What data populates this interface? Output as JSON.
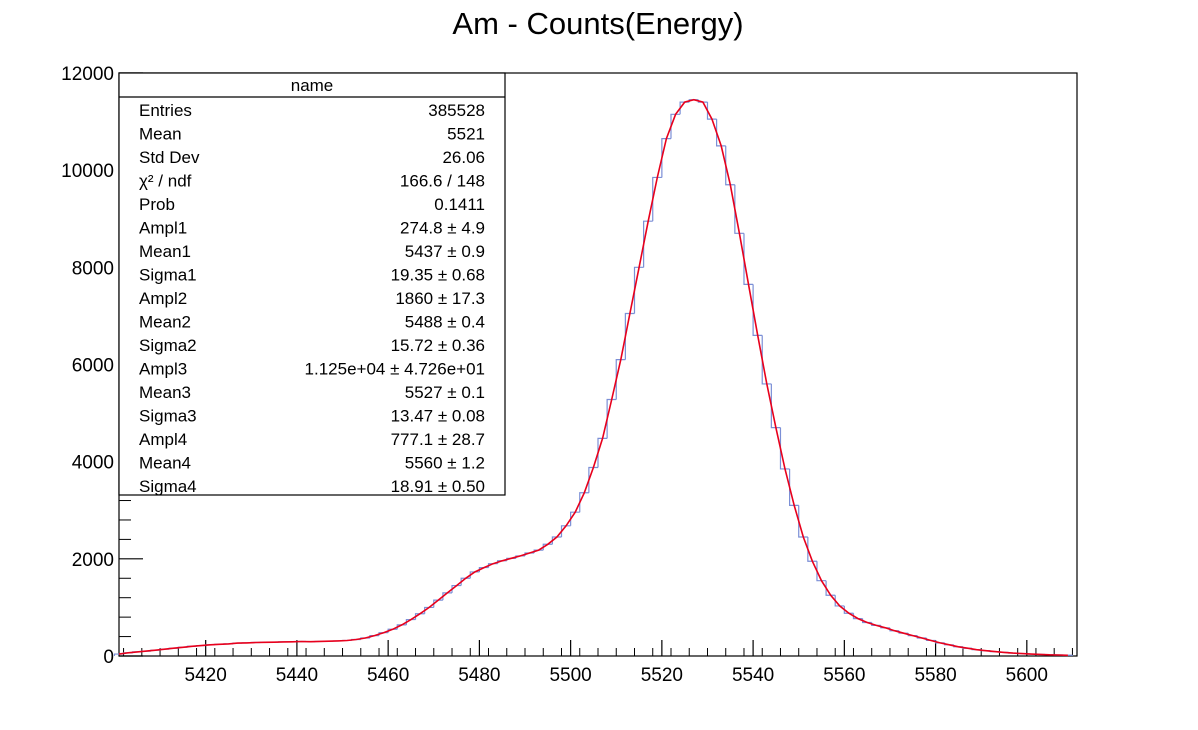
{
  "chart_data": {
    "type": "line",
    "title": "Am - Counts(Energy)",
    "xlabel": "",
    "ylabel": "",
    "xlim": [
      5401,
      5611
    ],
    "ylim": [
      0,
      12000
    ],
    "x_ticks": [
      5420,
      5440,
      5460,
      5480,
      5500,
      5520,
      5540,
      5560,
      5580,
      5600
    ],
    "y_ticks": [
      0,
      2000,
      4000,
      6000,
      8000,
      10000,
      12000
    ],
    "colors": {
      "histogram": "#7b8fd6",
      "fit": "#e8001c"
    },
    "bin_width": 2,
    "series": [
      {
        "kind": "histogram",
        "x": [
          5401,
          5403,
          5405,
          5407,
          5409,
          5411,
          5413,
          5415,
          5417,
          5419,
          5421,
          5423,
          5425,
          5427,
          5429,
          5431,
          5433,
          5435,
          5437,
          5439,
          5441,
          5443,
          5445,
          5447,
          5449,
          5451,
          5453,
          5455,
          5457,
          5459,
          5461,
          5463,
          5465,
          5467,
          5469,
          5471,
          5473,
          5475,
          5477,
          5479,
          5481,
          5483,
          5485,
          5487,
          5489,
          5491,
          5493,
          5495,
          5497,
          5499,
          5501,
          5503,
          5505,
          5507,
          5509,
          5511,
          5513,
          5515,
          5517,
          5519,
          5521,
          5523,
          5525,
          5527,
          5529,
          5531,
          5533,
          5535,
          5537,
          5539,
          5541,
          5543,
          5545,
          5547,
          5549,
          5551,
          5553,
          5555,
          5557,
          5559,
          5561,
          5563,
          5565,
          5567,
          5569,
          5571,
          5573,
          5575,
          5577,
          5579,
          5581,
          5583,
          5585,
          5587,
          5589,
          5591,
          5593,
          5595,
          5597,
          5599,
          5601,
          5603,
          5605,
          5607,
          5609
        ],
        "values": [
          40,
          65,
          85,
          100,
          120,
          140,
          160,
          180,
          200,
          215,
          230,
          240,
          250,
          265,
          270,
          278,
          282,
          285,
          290,
          292,
          298,
          295,
          300,
          305,
          310,
          320,
          340,
          370,
          420,
          480,
          550,
          640,
          750,
          870,
          1000,
          1150,
          1300,
          1450,
          1600,
          1730,
          1820,
          1900,
          1960,
          2010,
          2060,
          2120,
          2180,
          2300,
          2450,
          2680,
          2960,
          3360,
          3880,
          4480,
          5280,
          6100,
          7050,
          8000,
          8950,
          9850,
          10650,
          11150,
          11400,
          11450,
          11400,
          11050,
          10500,
          9700,
          8700,
          7650,
          6600,
          5600,
          4700,
          3850,
          3100,
          2450,
          1950,
          1550,
          1250,
          1030,
          880,
          770,
          690,
          630,
          580,
          520,
          470,
          420,
          370,
          320,
          270,
          230,
          190,
          160,
          130,
          110,
          90,
          75,
          60,
          50,
          40,
          32,
          25,
          20,
          15
        ]
      },
      {
        "kind": "fit",
        "x": [
          5401,
          5403,
          5405,
          5407,
          5409,
          5411,
          5413,
          5415,
          5417,
          5419,
          5421,
          5423,
          5425,
          5427,
          5429,
          5431,
          5433,
          5435,
          5437,
          5439,
          5441,
          5443,
          5445,
          5447,
          5449,
          5451,
          5453,
          5455,
          5457,
          5459,
          5461,
          5463,
          5465,
          5467,
          5469,
          5471,
          5473,
          5475,
          5477,
          5479,
          5481,
          5483,
          5485,
          5487,
          5489,
          5491,
          5493,
          5495,
          5497,
          5499,
          5501,
          5503,
          5505,
          5507,
          5509,
          5511,
          5513,
          5515,
          5517,
          5519,
          5521,
          5523,
          5525,
          5527,
          5529,
          5531,
          5533,
          5535,
          5537,
          5539,
          5541,
          5543,
          5545,
          5547,
          5549,
          5551,
          5553,
          5555,
          5557,
          5559,
          5561,
          5563,
          5565,
          5567,
          5569,
          5571,
          5573,
          5575,
          5577,
          5579,
          5581,
          5583,
          5585,
          5587,
          5589,
          5591,
          5593,
          5595,
          5597,
          5599,
          5601,
          5603,
          5605,
          5607,
          5609
        ],
        "values": [
          40,
          65,
          85,
          100,
          120,
          140,
          160,
          180,
          200,
          215,
          230,
          240,
          250,
          265,
          270,
          278,
          282,
          285,
          290,
          292,
          298,
          295,
          300,
          305,
          310,
          320,
          340,
          370,
          420,
          480,
          550,
          640,
          750,
          870,
          1000,
          1150,
          1300,
          1450,
          1600,
          1730,
          1820,
          1900,
          1960,
          2010,
          2060,
          2120,
          2180,
          2300,
          2450,
          2680,
          2960,
          3360,
          3880,
          4480,
          5280,
          6100,
          7050,
          8000,
          8950,
          9850,
          10650,
          11150,
          11400,
          11450,
          11400,
          11050,
          10500,
          9700,
          8700,
          7650,
          6600,
          5600,
          4700,
          3850,
          3100,
          2450,
          1950,
          1550,
          1250,
          1030,
          880,
          770,
          690,
          630,
          580,
          520,
          470,
          420,
          370,
          320,
          270,
          230,
          190,
          160,
          130,
          110,
          90,
          75,
          60,
          50,
          40,
          32,
          25,
          20,
          15
        ]
      }
    ]
  },
  "stats": {
    "name": "name",
    "rows": [
      {
        "label": "Entries",
        "value": "385528"
      },
      {
        "label": "Mean",
        "value": "5521"
      },
      {
        "label": "Std Dev",
        "value": "26.06"
      },
      {
        "label": "χ² / ndf",
        "value": "166.6 / 148"
      },
      {
        "label": "Prob",
        "value": "0.1411"
      },
      {
        "label": "Ampl1",
        "value": "274.8 ± 4.9"
      },
      {
        "label": "Mean1",
        "value": "5437 ± 0.9"
      },
      {
        "label": "Sigma1",
        "value": "19.35 ± 0.68"
      },
      {
        "label": "Ampl2",
        "value": "1860 ± 17.3"
      },
      {
        "label": "Mean2",
        "value": "5488 ± 0.4"
      },
      {
        "label": "Sigma2",
        "value": "15.72 ± 0.36"
      },
      {
        "label": "Ampl3",
        "value": "1.125e+04 ± 4.726e+01"
      },
      {
        "label": "Mean3",
        "value": "5527 ± 0.1"
      },
      {
        "label": "Sigma3",
        "value": "13.47 ± 0.08"
      },
      {
        "label": "Ampl4",
        "value": "777.1 ± 28.7"
      },
      {
        "label": "Mean4",
        "value": "5560 ± 1.2"
      },
      {
        "label": "Sigma4",
        "value": "18.91 ± 0.50"
      }
    ]
  }
}
